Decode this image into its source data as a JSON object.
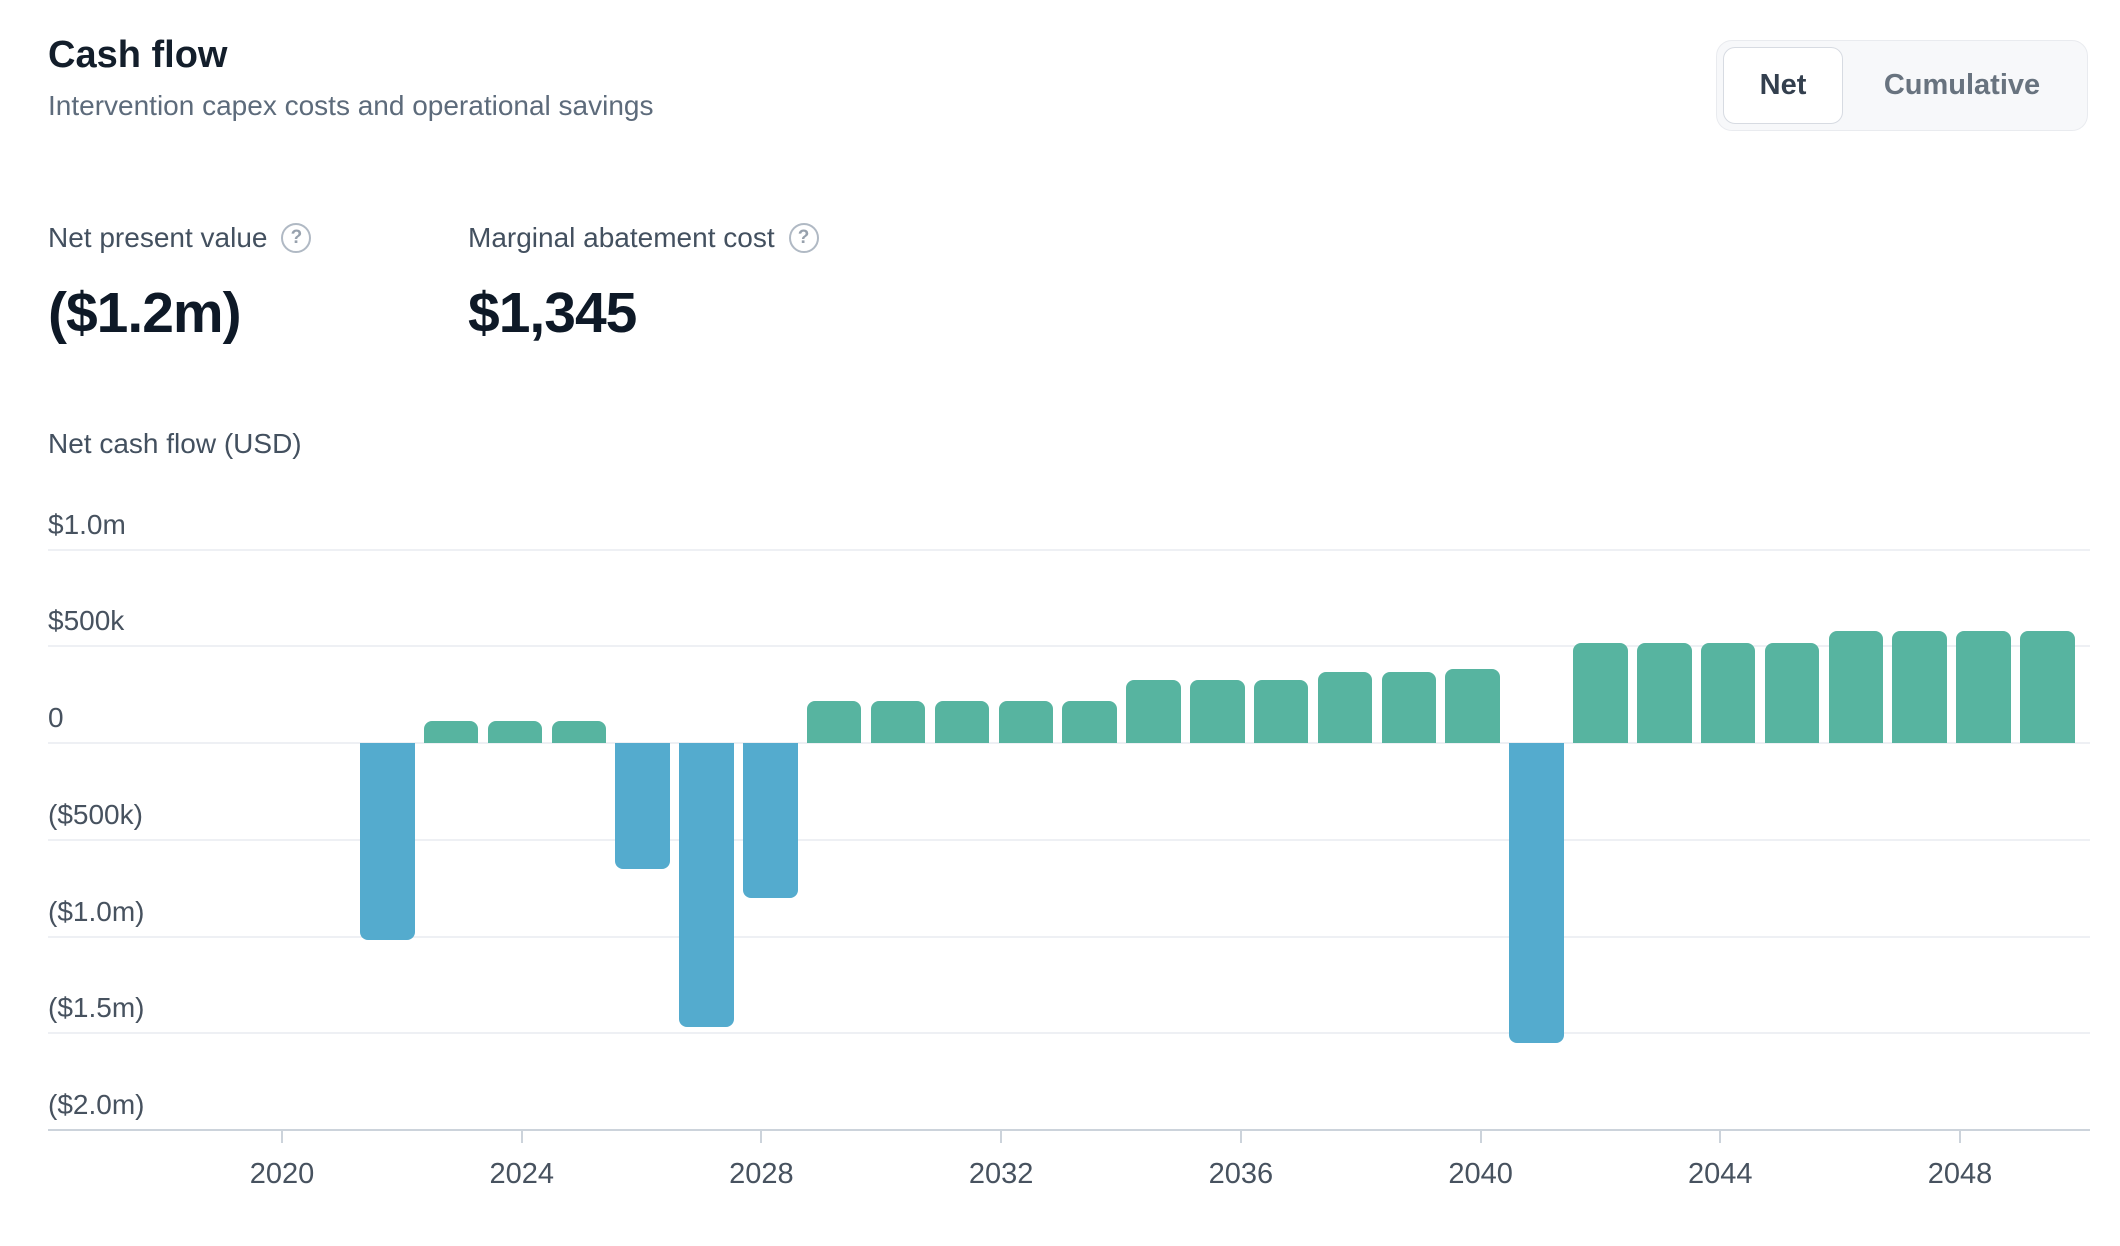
{
  "header": {
    "title": "Cash flow",
    "subtitle": "Intervention capex costs and operational savings"
  },
  "toggle": {
    "options": [
      "Net",
      "Cumulative"
    ],
    "selected": "Net"
  },
  "kpis": [
    {
      "label": "Net present value",
      "value": "($1.2m)",
      "help_icon": "question-circle"
    },
    {
      "label": "Marginal abatement cost",
      "value": "$1,345",
      "help_icon": "question-circle"
    }
  ],
  "chart_data": {
    "type": "bar",
    "title": "Net cash flow (USD)",
    "xlabel": "",
    "ylabel": "Net cash flow (USD)",
    "ylim": [
      -2000000,
      1000000
    ],
    "grid": "horizontal",
    "positive_color": "#57b4a0",
    "negative_color": "#54abce",
    "x": [
      2021,
      2022,
      2023,
      2024,
      2025,
      2026,
      2027,
      2028,
      2029,
      2030,
      2031,
      2032,
      2033,
      2034,
      2035,
      2036,
      2037,
      2038,
      2039,
      2040,
      2041,
      2042,
      2043,
      2044,
      2045,
      2046,
      2047
    ],
    "values": [
      -1020000,
      115000,
      115000,
      115000,
      -650000,
      -1470000,
      -800000,
      215000,
      215000,
      215000,
      215000,
      215000,
      325000,
      325000,
      325000,
      365000,
      365000,
      380000,
      -1550000,
      515000,
      515000,
      515000,
      515000,
      580000,
      580000,
      580000,
      580000
    ],
    "y_ticks": [
      {
        "label": "$1.0m",
        "value": 1000000
      },
      {
        "label": "$500k",
        "value": 500000
      },
      {
        "label": "0",
        "value": 0
      },
      {
        "label": "($500k)",
        "value": -500000
      },
      {
        "label": "($1.0m)",
        "value": -1000000
      },
      {
        "label": "($1.5m)",
        "value": -1500000
      },
      {
        "label": "($2.0m)",
        "value": -2000000
      }
    ],
    "x_ticks": [
      2020,
      2024,
      2028,
      2032,
      2036,
      2040,
      2044,
      2048
    ]
  }
}
